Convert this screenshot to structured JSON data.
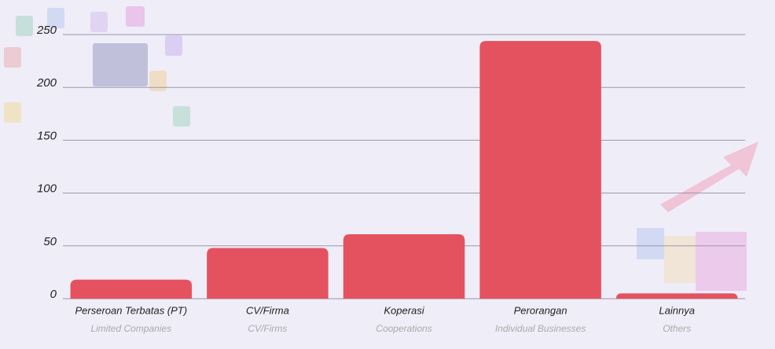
{
  "chart_data": {
    "type": "bar",
    "categories": [
      "Perseroan Terbatas (PT)",
      "CV/Firma",
      "Koperasi",
      "Perorangan",
      "Lainnya"
    ],
    "category_translations": [
      "Limited Companies",
      "CV/Firms",
      "Cooperations",
      "Individual Businesses",
      "Others"
    ],
    "values": [
      18,
      48,
      61,
      244,
      5
    ],
    "color": "#e5525f",
    "ylim": [
      0,
      250
    ],
    "yticks": [
      0,
      50,
      100,
      150,
      200,
      250
    ],
    "grid": true
  }
}
